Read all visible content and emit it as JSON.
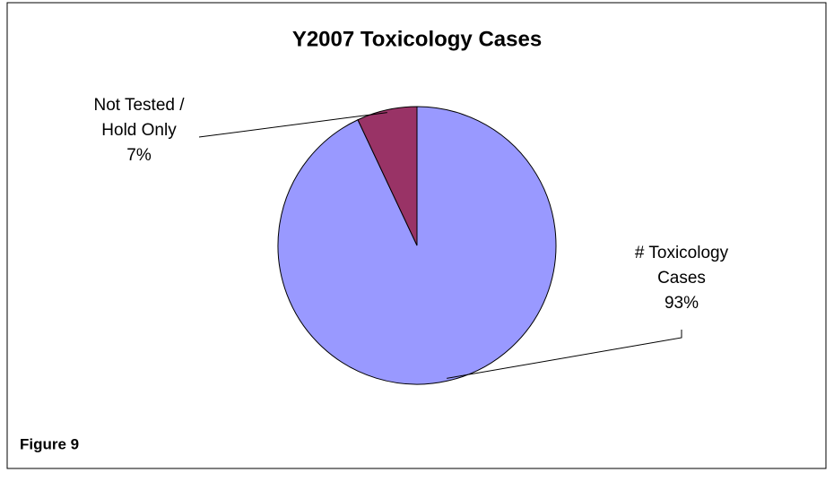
{
  "chart_data": {
    "type": "pie",
    "title": "Y2007 Toxicology Cases",
    "categories": [
      "# Toxicology Cases",
      "Not Tested / Hold Only"
    ],
    "values": [
      93,
      7
    ],
    "value_labels": [
      "93%",
      "7%"
    ],
    "colors": [
      "#9999ff",
      "#993366"
    ],
    "note": "Figure 9"
  }
}
